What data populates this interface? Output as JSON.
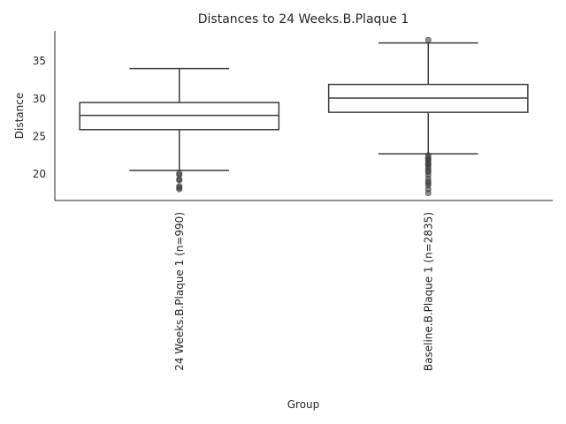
{
  "chart_data": {
    "type": "box",
    "title": "Distances to 24 Weeks.B.Plaque 1",
    "xlabel": "Group",
    "ylabel": "Distance",
    "ylim": [
      16.5,
      39
    ],
    "yticks": [
      20,
      25,
      30,
      35
    ],
    "grid": false,
    "categories": [
      "24 Weeks.B.Plaque 1 (n=990)",
      "Baseline.B.Plaque 1 (n=2835)"
    ],
    "boxes": [
      {
        "category": "24 Weeks.B.Plaque 1 (n=990)",
        "whisker_low": 20.5,
        "q1": 25.9,
        "median": 27.8,
        "q3": 29.5,
        "whisker_high": 34.0,
        "outliers": [
          20.1,
          19.9,
          19.3,
          19.2,
          18.4,
          18.2,
          18.0
        ]
      },
      {
        "category": "Baseline.B.Plaque 1 (n=2835)",
        "whisker_low": 22.7,
        "q1": 28.2,
        "median": 30.1,
        "q3": 31.9,
        "whisker_high": 37.4,
        "outliers": [
          37.8,
          22.5,
          22.2,
          22.0,
          21.8,
          21.5,
          21.3,
          21.1,
          20.8,
          20.5,
          20.3,
          19.9,
          19.4,
          19.0,
          18.8,
          18.5,
          18.0,
          17.5
        ]
      }
    ]
  }
}
